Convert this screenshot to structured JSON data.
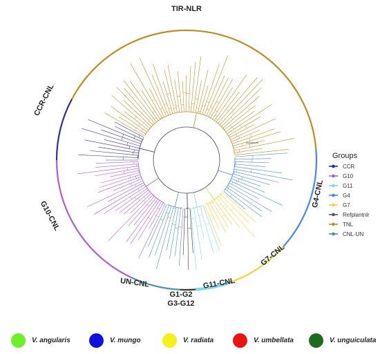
{
  "clades": [
    {
      "label": "TIR-NLR",
      "color": "#c08c22"
    },
    {
      "label": "CCR-CNL",
      "color": "#2b2f9a"
    },
    {
      "label": "G10-CNL",
      "color": "#b05bd6"
    },
    {
      "label": "UN-CNL",
      "color": "#4a8fae"
    },
    {
      "label": "G1-G2",
      "color": "#333333"
    },
    {
      "label": "G3-G12",
      "color": "#333333"
    },
    {
      "label": "G11-CNL",
      "color": "#7dd8ec"
    },
    {
      "label": "G7-CNL",
      "color": "#f0d23c"
    },
    {
      "label": "G4-CNL",
      "color": "#4a86e8"
    }
  ],
  "legend": {
    "title": "Groups",
    "items": [
      {
        "label": "CCR",
        "color": "#1f2a9c"
      },
      {
        "label": "G10",
        "color": "#b05bd6"
      },
      {
        "label": "G11",
        "color": "#7dd8ec"
      },
      {
        "label": "G4",
        "color": "#4a86e8"
      },
      {
        "label": "G7",
        "color": "#f0d23c"
      },
      {
        "label": "Refplantnlr",
        "color": "#555555"
      },
      {
        "label": "TNL",
        "color": "#c08c22"
      },
      {
        "label": "CNL-UN",
        "color": "#4a8fae"
      }
    ]
  },
  "species": [
    {
      "name": "V. angularis",
      "color": "#6cf02a"
    },
    {
      "name": "V. mungo",
      "color": "#1010e0"
    },
    {
      "name": "V. radiata",
      "color": "#f7ef1a"
    },
    {
      "name": "V. umbellata",
      "color": "#ee1111"
    },
    {
      "name": "V. unguiculata",
      "color": "#1d6b1d"
    }
  ]
}
